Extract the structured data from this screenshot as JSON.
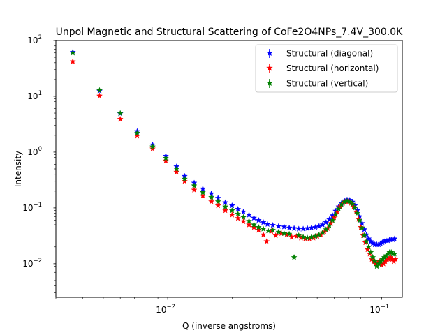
{
  "chart_data": {
    "type": "scatter",
    "title": "Unpol Magnetic and Structural Scattering of CoFe2O4NPs_7.4V_300.0K",
    "xlabel": "Q (inverse angstroms)",
    "ylabel": "Intensity",
    "xscale": "log",
    "yscale": "log",
    "xlim": [
      0.003,
      0.125
    ],
    "ylim": [
      0.0025,
      100
    ],
    "x_ticks": [
      {
        "value": 0.01,
        "base": "10",
        "exp": "−2"
      },
      {
        "value": 0.1,
        "base": "10",
        "exp": "−1"
      }
    ],
    "y_ticks": [
      {
        "value": 0.01,
        "base": "10",
        "exp": "−2"
      },
      {
        "value": 0.1,
        "base": "10",
        "exp": "−1"
      },
      {
        "value": 1,
        "base": "10",
        "exp": "0"
      },
      {
        "value": 10,
        "base": "10",
        "exp": "1"
      },
      {
        "value": 100,
        "base": "10",
        "exp": "2"
      }
    ],
    "legend_position": "top-right",
    "grid": false,
    "marker": "star",
    "series": [
      {
        "name": "Structural (diagonal)",
        "color": "#0000ff",
        "points": [
          [
            0.0036,
            62
          ],
          [
            0.0048,
            12.5
          ],
          [
            0.006,
            4.9
          ],
          [
            0.0072,
            2.35
          ],
          [
            0.0085,
            1.35
          ],
          [
            0.0098,
            0.85
          ],
          [
            0.011,
            0.55
          ],
          [
            0.012,
            0.37
          ],
          [
            0.0133,
            0.28
          ],
          [
            0.0146,
            0.22
          ],
          [
            0.016,
            0.18
          ],
          [
            0.0172,
            0.15
          ],
          [
            0.0186,
            0.125
          ],
          [
            0.02,
            0.11
          ],
          [
            0.0213,
            0.095
          ],
          [
            0.0226,
            0.085
          ],
          [
            0.024,
            0.075
          ],
          [
            0.0253,
            0.066
          ],
          [
            0.0266,
            0.06
          ],
          [
            0.028,
            0.055
          ],
          [
            0.0293,
            0.051
          ],
          [
            0.031,
            0.049
          ],
          [
            0.033,
            0.047
          ],
          [
            0.035,
            0.046
          ],
          [
            0.037,
            0.044
          ],
          [
            0.039,
            0.043
          ],
          [
            0.041,
            0.042
          ],
          [
            0.043,
            0.042
          ],
          [
            0.045,
            0.043
          ],
          [
            0.047,
            0.044
          ],
          [
            0.049,
            0.045
          ],
          [
            0.051,
            0.047
          ],
          [
            0.053,
            0.05
          ],
          [
            0.055,
            0.055
          ],
          [
            0.057,
            0.062
          ],
          [
            0.059,
            0.073
          ],
          [
            0.061,
            0.088
          ],
          [
            0.063,
            0.105
          ],
          [
            0.065,
            0.122
          ],
          [
            0.067,
            0.135
          ],
          [
            0.069,
            0.14
          ],
          [
            0.071,
            0.138
          ],
          [
            0.073,
            0.128
          ],
          [
            0.075,
            0.11
          ],
          [
            0.077,
            0.09
          ],
          [
            0.079,
            0.07
          ],
          [
            0.081,
            0.053
          ],
          [
            0.083,
            0.041
          ],
          [
            0.085,
            0.033
          ],
          [
            0.087,
            0.028
          ],
          [
            0.089,
            0.025
          ],
          [
            0.091,
            0.023
          ],
          [
            0.093,
            0.022
          ],
          [
            0.095,
            0.022
          ],
          [
            0.097,
            0.022
          ],
          [
            0.099,
            0.023
          ],
          [
            0.101,
            0.024
          ],
          [
            0.103,
            0.025
          ],
          [
            0.105,
            0.026
          ],
          [
            0.107,
            0.026
          ],
          [
            0.109,
            0.027
          ],
          [
            0.111,
            0.027
          ],
          [
            0.113,
            0.027
          ],
          [
            0.115,
            0.028
          ]
        ]
      },
      {
        "name": "Structural (horizontal)",
        "color": "#ff0000",
        "points": [
          [
            0.0036,
            42
          ],
          [
            0.0048,
            10.2
          ],
          [
            0.006,
            3.9
          ],
          [
            0.0072,
            1.95
          ],
          [
            0.0085,
            1.15
          ],
          [
            0.0098,
            0.7
          ],
          [
            0.011,
            0.44
          ],
          [
            0.012,
            0.3
          ],
          [
            0.0133,
            0.21
          ],
          [
            0.0146,
            0.165
          ],
          [
            0.016,
            0.13
          ],
          [
            0.0172,
            0.11
          ],
          [
            0.0186,
            0.09
          ],
          [
            0.02,
            0.075
          ],
          [
            0.0213,
            0.065
          ],
          [
            0.0226,
            0.057
          ],
          [
            0.024,
            0.05
          ],
          [
            0.0253,
            0.045
          ],
          [
            0.0266,
            0.04
          ],
          [
            0.028,
            0.033
          ],
          [
            0.029,
            0.025
          ],
          [
            0.0305,
            0.038
          ],
          [
            0.032,
            0.032
          ],
          [
            0.034,
            0.035
          ],
          [
            0.036,
            0.033
          ],
          [
            0.038,
            0.03
          ],
          [
            0.04,
            0.031
          ],
          [
            0.042,
            0.029
          ],
          [
            0.044,
            0.028
          ],
          [
            0.046,
            0.028
          ],
          [
            0.048,
            0.029
          ],
          [
            0.05,
            0.031
          ],
          [
            0.052,
            0.033
          ],
          [
            0.054,
            0.037
          ],
          [
            0.056,
            0.043
          ],
          [
            0.058,
            0.053
          ],
          [
            0.06,
            0.067
          ],
          [
            0.062,
            0.085
          ],
          [
            0.064,
            0.105
          ],
          [
            0.066,
            0.122
          ],
          [
            0.068,
            0.13
          ],
          [
            0.07,
            0.13
          ],
          [
            0.072,
            0.122
          ],
          [
            0.074,
            0.105
          ],
          [
            0.076,
            0.085
          ],
          [
            0.078,
            0.063
          ],
          [
            0.08,
            0.045
          ],
          [
            0.082,
            0.032
          ],
          [
            0.084,
            0.024
          ],
          [
            0.086,
            0.018
          ],
          [
            0.088,
            0.015
          ],
          [
            0.09,
            0.012
          ],
          [
            0.092,
            0.011
          ],
          [
            0.094,
            0.01
          ],
          [
            0.096,
            0.0105
          ],
          [
            0.098,
            0.011
          ],
          [
            0.1,
            0.0095
          ],
          [
            0.102,
            0.01
          ],
          [
            0.104,
            0.011
          ],
          [
            0.106,
            0.012
          ],
          [
            0.108,
            0.012
          ],
          [
            0.11,
            0.013
          ],
          [
            0.112,
            0.012
          ],
          [
            0.114,
            0.011
          ],
          [
            0.116,
            0.012
          ]
        ]
      },
      {
        "name": "Structural (vertical)",
        "color": "#008000",
        "points": [
          [
            0.0036,
            60
          ],
          [
            0.0048,
            12.8
          ],
          [
            0.006,
            4.95
          ],
          [
            0.0072,
            2.2
          ],
          [
            0.0085,
            1.25
          ],
          [
            0.0098,
            0.78
          ],
          [
            0.011,
            0.5
          ],
          [
            0.012,
            0.33
          ],
          [
            0.0133,
            0.25
          ],
          [
            0.0146,
            0.19
          ],
          [
            0.016,
            0.155
          ],
          [
            0.0172,
            0.13
          ],
          [
            0.0186,
            0.105
          ],
          [
            0.02,
            0.09
          ],
          [
            0.0213,
            0.078
          ],
          [
            0.0226,
            0.068
          ],
          [
            0.024,
            0.058
          ],
          [
            0.0253,
            0.05
          ],
          [
            0.0266,
            0.045
          ],
          [
            0.028,
            0.042
          ],
          [
            0.0295,
            0.039
          ],
          [
            0.031,
            0.04
          ],
          [
            0.033,
            0.037
          ],
          [
            0.035,
            0.035
          ],
          [
            0.037,
            0.034
          ],
          [
            0.039,
            0.013
          ],
          [
            0.041,
            0.032
          ],
          [
            0.043,
            0.03
          ],
          [
            0.045,
            0.029
          ],
          [
            0.047,
            0.03
          ],
          [
            0.049,
            0.031
          ],
          [
            0.051,
            0.033
          ],
          [
            0.053,
            0.036
          ],
          [
            0.055,
            0.041
          ],
          [
            0.057,
            0.048
          ],
          [
            0.059,
            0.06
          ],
          [
            0.061,
            0.076
          ],
          [
            0.063,
            0.096
          ],
          [
            0.065,
            0.115
          ],
          [
            0.067,
            0.128
          ],
          [
            0.069,
            0.132
          ],
          [
            0.071,
            0.128
          ],
          [
            0.073,
            0.117
          ],
          [
            0.075,
            0.1
          ],
          [
            0.077,
            0.08
          ],
          [
            0.079,
            0.06
          ],
          [
            0.081,
            0.044
          ],
          [
            0.083,
            0.032
          ],
          [
            0.085,
            0.025
          ],
          [
            0.087,
            0.02
          ],
          [
            0.089,
            0.016
          ],
          [
            0.091,
            0.013
          ],
          [
            0.093,
            0.011
          ],
          [
            0.095,
            0.009
          ],
          [
            0.097,
            0.01
          ],
          [
            0.099,
            0.011
          ],
          [
            0.101,
            0.012
          ],
          [
            0.103,
            0.013
          ],
          [
            0.105,
            0.014
          ],
          [
            0.107,
            0.015
          ],
          [
            0.109,
            0.016
          ],
          [
            0.111,
            0.016
          ],
          [
            0.113,
            0.015
          ],
          [
            0.115,
            0.015
          ]
        ]
      }
    ]
  }
}
